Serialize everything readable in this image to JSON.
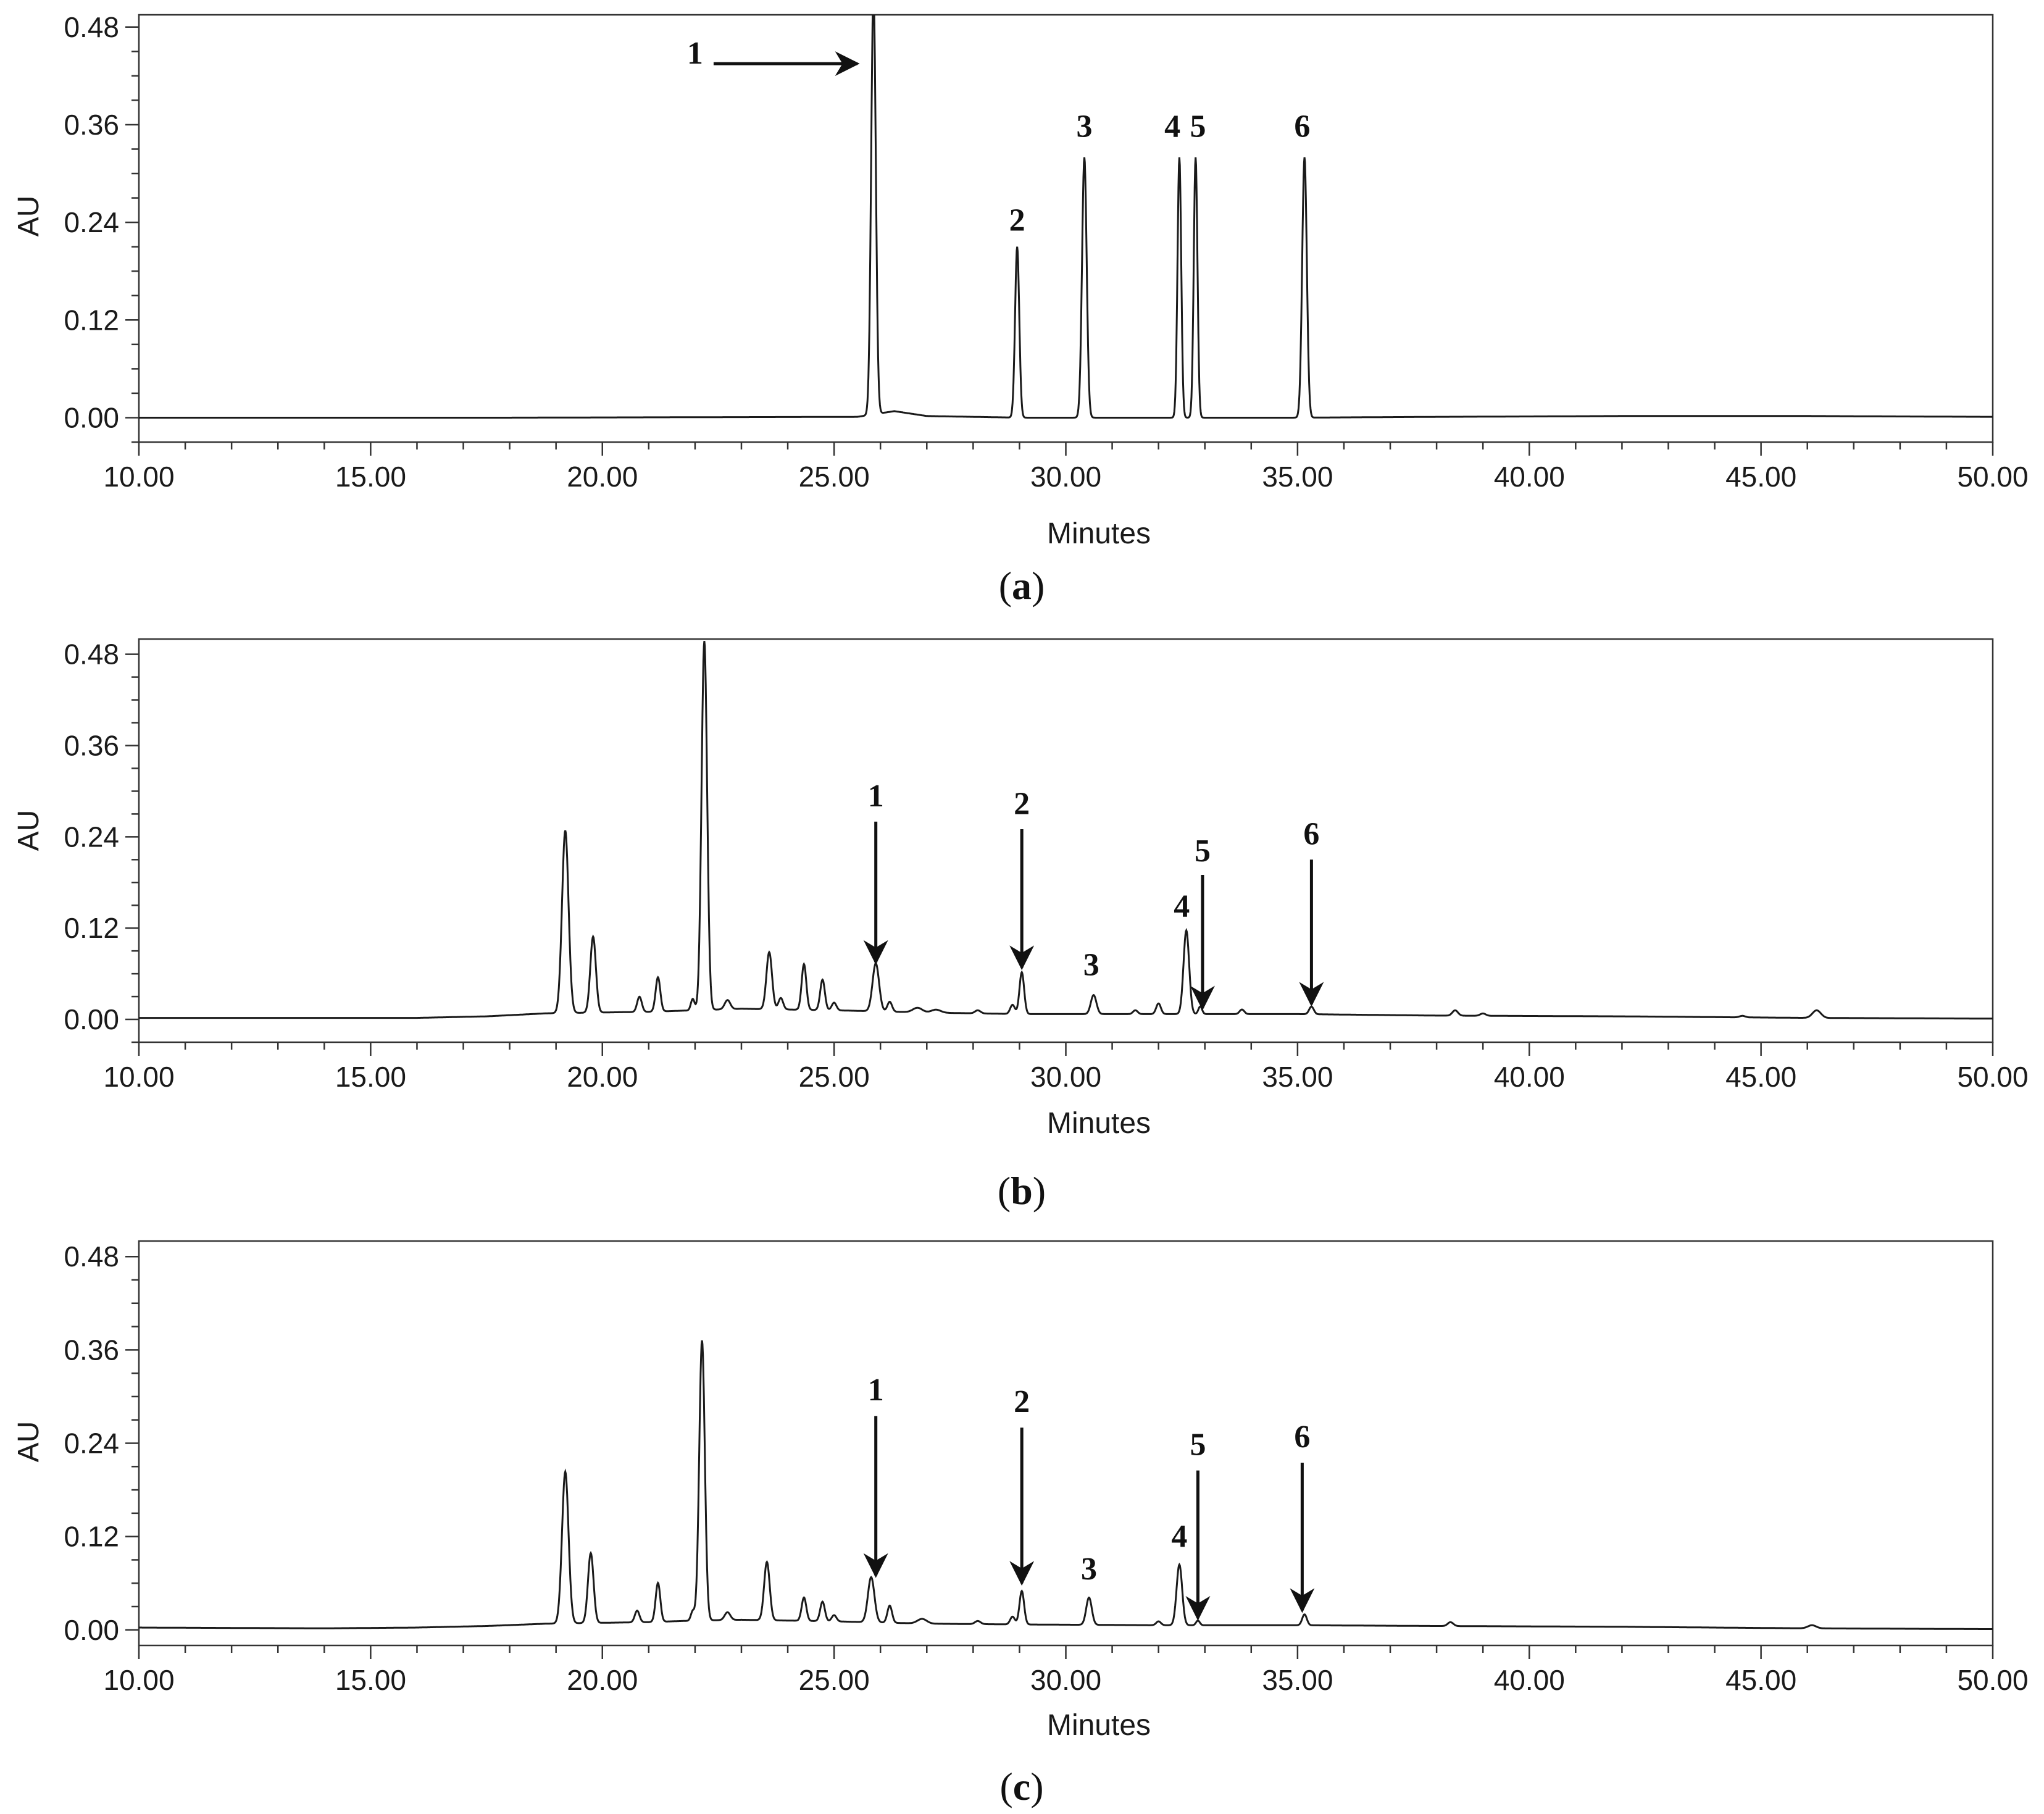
{
  "colors": {
    "trace": "#1a1a1a",
    "frame": "#333333",
    "background": "#ffffff"
  },
  "chart_data": [
    {
      "type": "line",
      "panel_caption": "a",
      "xlabel": "Minutes",
      "ylabel": "AU",
      "xlim": [
        10,
        50
      ],
      "ylim": [
        -0.03,
        0.495
      ],
      "x_ticks": [
        "10.00",
        "15.00",
        "20.00",
        "25.00",
        "30.00",
        "35.00",
        "40.00",
        "45.00",
        "50.00"
      ],
      "y_ticks": [
        "0.00",
        "0.12",
        "0.24",
        "0.36",
        "0.48"
      ],
      "grid": false,
      "baseline": [
        [
          10,
          0.0
        ],
        [
          18,
          0.0
        ],
        [
          25.5,
          0.001
        ],
        [
          26.3,
          0.008
        ],
        [
          27,
          0.002
        ],
        [
          29,
          0.0
        ],
        [
          35,
          0.0
        ],
        [
          38,
          0.001
        ],
        [
          42,
          0.002
        ],
        [
          46,
          0.002
        ],
        [
          50,
          0.001
        ]
      ],
      "peaks": [
        {
          "x": 25.85,
          "y": 0.52,
          "w": 0.05
        },
        {
          "x": 28.95,
          "y": 0.21,
          "w": 0.045
        },
        {
          "x": 30.4,
          "y": 0.32,
          "w": 0.05
        },
        {
          "x": 32.45,
          "y": 0.32,
          "w": 0.04
        },
        {
          "x": 32.8,
          "y": 0.32,
          "w": 0.04
        },
        {
          "x": 35.15,
          "y": 0.32,
          "w": 0.05
        }
      ],
      "peak_labels": [
        {
          "text": "1",
          "x": 22.0,
          "y": 0.435,
          "arrow": "right",
          "arrow_from": [
            22.4,
            0.435
          ],
          "arrow_to": [
            25.5,
            0.435
          ]
        },
        {
          "text": "2",
          "x": 28.95,
          "y": 0.23
        },
        {
          "text": "3",
          "x": 30.4,
          "y": 0.345
        },
        {
          "text": "4",
          "x": 32.3,
          "y": 0.345
        },
        {
          "text": "5",
          "x": 32.85,
          "y": 0.345
        },
        {
          "text": "6",
          "x": 35.1,
          "y": 0.345
        }
      ]
    },
    {
      "type": "line",
      "panel_caption": "b",
      "xlabel": "Minutes",
      "ylabel": "AU",
      "xlim": [
        10,
        50
      ],
      "ylim": [
        -0.03,
        0.5
      ],
      "x_ticks": [
        "10.00",
        "15.00",
        "20.00",
        "25.00",
        "30.00",
        "35.00",
        "40.00",
        "45.00",
        "50.00"
      ],
      "y_ticks": [
        "0.00",
        "0.12",
        "0.24",
        "0.36",
        "0.48"
      ],
      "grid": false,
      "baseline": [
        [
          10,
          0.002
        ],
        [
          14,
          0.002
        ],
        [
          16,
          0.002
        ],
        [
          17.5,
          0.004
        ],
        [
          18.8,
          0.008
        ],
        [
          21,
          0.01
        ],
        [
          22,
          0.012
        ],
        [
          23,
          0.014
        ],
        [
          25,
          0.012
        ],
        [
          27,
          0.009
        ],
        [
          29,
          0.007
        ],
        [
          32,
          0.007
        ],
        [
          35,
          0.007
        ],
        [
          38,
          0.005
        ],
        [
          42,
          0.004
        ],
        [
          46,
          0.002
        ],
        [
          50,
          0.001
        ]
      ],
      "peaks": [
        {
          "x": 19.2,
          "y": 0.24,
          "w": 0.07
        },
        {
          "x": 19.8,
          "y": 0.1,
          "w": 0.06
        },
        {
          "x": 20.8,
          "y": 0.02,
          "w": 0.05
        },
        {
          "x": 21.2,
          "y": 0.045,
          "w": 0.05
        },
        {
          "x": 21.95,
          "y": 0.015,
          "w": 0.04
        },
        {
          "x": 22.2,
          "y": 0.485,
          "w": 0.06
        },
        {
          "x": 22.7,
          "y": 0.012,
          "w": 0.06
        },
        {
          "x": 23.6,
          "y": 0.075,
          "w": 0.06
        },
        {
          "x": 23.85,
          "y": 0.015,
          "w": 0.05
        },
        {
          "x": 24.35,
          "y": 0.06,
          "w": 0.05
        },
        {
          "x": 24.75,
          "y": 0.04,
          "w": 0.05
        },
        {
          "x": 25.0,
          "y": 0.01,
          "w": 0.05
        },
        {
          "x": 25.9,
          "y": 0.063,
          "w": 0.07
        },
        {
          "x": 26.2,
          "y": 0.013,
          "w": 0.05
        },
        {
          "x": 26.8,
          "y": 0.006,
          "w": 0.1
        },
        {
          "x": 27.2,
          "y": 0.004,
          "w": 0.1
        },
        {
          "x": 28.1,
          "y": 0.004,
          "w": 0.06
        },
        {
          "x": 28.85,
          "y": 0.012,
          "w": 0.05
        },
        {
          "x": 29.05,
          "y": 0.055,
          "w": 0.05
        },
        {
          "x": 30.6,
          "y": 0.025,
          "w": 0.06
        },
        {
          "x": 31.5,
          "y": 0.005,
          "w": 0.05
        },
        {
          "x": 32.0,
          "y": 0.014,
          "w": 0.05
        },
        {
          "x": 32.6,
          "y": 0.11,
          "w": 0.06
        },
        {
          "x": 32.9,
          "y": 0.01,
          "w": 0.04
        },
        {
          "x": 33.8,
          "y": 0.006,
          "w": 0.05
        },
        {
          "x": 35.3,
          "y": 0.01,
          "w": 0.05
        },
        {
          "x": 38.4,
          "y": 0.007,
          "w": 0.06
        },
        {
          "x": 39.0,
          "y": 0.003,
          "w": 0.06
        },
        {
          "x": 44.6,
          "y": 0.002,
          "w": 0.06
        },
        {
          "x": 46.2,
          "y": 0.01,
          "w": 0.09
        }
      ],
      "peak_labels": [
        {
          "text": "1",
          "x": 25.9,
          "y": 0.28,
          "arrow": "down",
          "arrow_from": [
            25.9,
            0.26
          ],
          "arrow_to": [
            25.9,
            0.075
          ]
        },
        {
          "text": "2",
          "x": 29.05,
          "y": 0.27,
          "arrow": "down",
          "arrow_from": [
            29.05,
            0.25
          ],
          "arrow_to": [
            29.05,
            0.068
          ]
        },
        {
          "text": "3",
          "x": 30.55,
          "y": 0.058
        },
        {
          "text": "4",
          "x": 32.5,
          "y": 0.135
        },
        {
          "text": "5",
          "x": 32.95,
          "y": 0.208,
          "arrow": "down",
          "arrow_from": [
            32.95,
            0.19
          ],
          "arrow_to": [
            32.95,
            0.015
          ]
        },
        {
          "text": "6",
          "x": 35.3,
          "y": 0.23,
          "arrow": "down",
          "arrow_from": [
            35.3,
            0.21
          ],
          "arrow_to": [
            35.3,
            0.02
          ]
        }
      ]
    },
    {
      "type": "line",
      "panel_caption": "c",
      "xlabel": "Minutes",
      "ylabel": "AU",
      "xlim": [
        10,
        50
      ],
      "ylim": [
        -0.02,
        0.5
      ],
      "x_ticks": [
        "10.00",
        "15.00",
        "20.00",
        "25.00",
        "30.00",
        "35.00",
        "40.00",
        "45.00",
        "50.00"
      ],
      "y_ticks": [
        "0.00",
        "0.12",
        "0.24",
        "0.36",
        "0.48"
      ],
      "grid": false,
      "baseline": [
        [
          10,
          0.003
        ],
        [
          14,
          0.002
        ],
        [
          16,
          0.003
        ],
        [
          17.5,
          0.005
        ],
        [
          18.8,
          0.008
        ],
        [
          21,
          0.01
        ],
        [
          22,
          0.012
        ],
        [
          23,
          0.013
        ],
        [
          25,
          0.011
        ],
        [
          27,
          0.008
        ],
        [
          29,
          0.007
        ],
        [
          32,
          0.006
        ],
        [
          35,
          0.006
        ],
        [
          38,
          0.005
        ],
        [
          42,
          0.004
        ],
        [
          46,
          0.002
        ],
        [
          50,
          0.001
        ]
      ],
      "peaks": [
        {
          "x": 19.2,
          "y": 0.195,
          "w": 0.07
        },
        {
          "x": 19.75,
          "y": 0.09,
          "w": 0.06
        },
        {
          "x": 20.75,
          "y": 0.015,
          "w": 0.05
        },
        {
          "x": 21.2,
          "y": 0.05,
          "w": 0.05
        },
        {
          "x": 21.95,
          "y": 0.012,
          "w": 0.04
        },
        {
          "x": 22.15,
          "y": 0.36,
          "w": 0.06
        },
        {
          "x": 22.7,
          "y": 0.01,
          "w": 0.06
        },
        {
          "x": 23.55,
          "y": 0.075,
          "w": 0.06
        },
        {
          "x": 24.35,
          "y": 0.03,
          "w": 0.05
        },
        {
          "x": 24.75,
          "y": 0.025,
          "w": 0.05
        },
        {
          "x": 25.0,
          "y": 0.008,
          "w": 0.05
        },
        {
          "x": 25.8,
          "y": 0.058,
          "w": 0.07
        },
        {
          "x": 26.2,
          "y": 0.022,
          "w": 0.05
        },
        {
          "x": 26.9,
          "y": 0.006,
          "w": 0.1
        },
        {
          "x": 28.1,
          "y": 0.004,
          "w": 0.06
        },
        {
          "x": 28.85,
          "y": 0.01,
          "w": 0.05
        },
        {
          "x": 29.05,
          "y": 0.043,
          "w": 0.05
        },
        {
          "x": 30.5,
          "y": 0.035,
          "w": 0.06
        },
        {
          "x": 32.0,
          "y": 0.005,
          "w": 0.05
        },
        {
          "x": 32.45,
          "y": 0.078,
          "w": 0.06
        },
        {
          "x": 32.85,
          "y": 0.006,
          "w": 0.04
        },
        {
          "x": 35.15,
          "y": 0.014,
          "w": 0.05
        },
        {
          "x": 38.3,
          "y": 0.005,
          "w": 0.06
        },
        {
          "x": 46.1,
          "y": 0.004,
          "w": 0.09
        }
      ],
      "peak_labels": [
        {
          "text": "1",
          "x": 25.9,
          "y": 0.295,
          "arrow": "down",
          "arrow_from": [
            25.9,
            0.275
          ],
          "arrow_to": [
            25.9,
            0.07
          ]
        },
        {
          "text": "2",
          "x": 29.05,
          "y": 0.28,
          "arrow": "down",
          "arrow_from": [
            29.05,
            0.26
          ],
          "arrow_to": [
            29.05,
            0.06
          ]
        },
        {
          "text": "3",
          "x": 30.5,
          "y": 0.065
        },
        {
          "text": "4",
          "x": 32.45,
          "y": 0.107
        },
        {
          "text": "5",
          "x": 32.85,
          "y": 0.225,
          "arrow": "down",
          "arrow_from": [
            32.85,
            0.205
          ],
          "arrow_to": [
            32.85,
            0.015
          ]
        },
        {
          "text": "6",
          "x": 35.1,
          "y": 0.235,
          "arrow": "down",
          "arrow_from": [
            35.1,
            0.215
          ],
          "arrow_to": [
            35.1,
            0.025
          ]
        }
      ]
    }
  ]
}
